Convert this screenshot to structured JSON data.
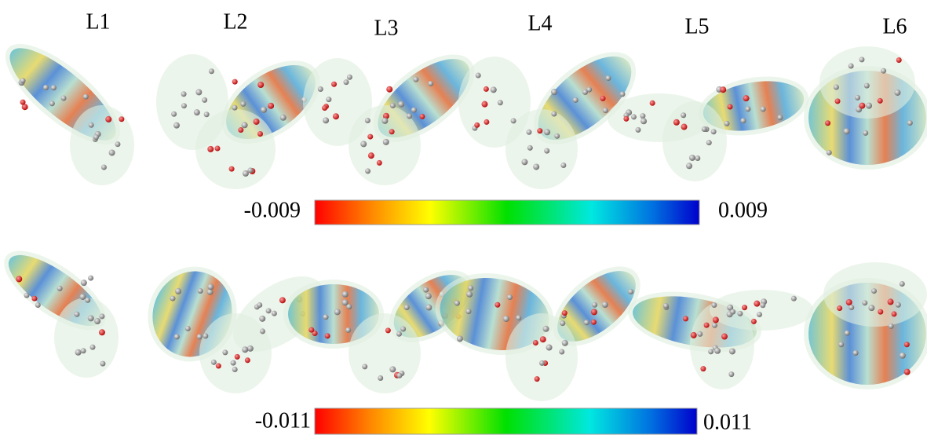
{
  "panel_labels": [
    "L1",
    "L2",
    "L3",
    "L4",
    "L5",
    "L6"
  ],
  "colorbars": [
    {
      "min_label": "-0.009",
      "max_label": "0.009"
    },
    {
      "min_label": "-0.011",
      "max_label": "0.011"
    }
  ]
}
